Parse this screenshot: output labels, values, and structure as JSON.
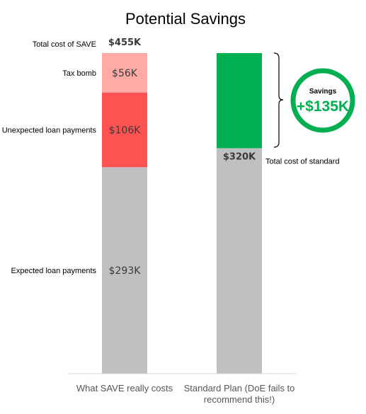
{
  "chart_data": {
    "type": "bar",
    "title": "Potential Savings",
    "ylim": [
      0,
      500
    ],
    "categories": [
      "What SAVE really costs",
      "Standard Plan (DoE fails to recommend this!)"
    ],
    "category_lines": [
      [
        "What SAVE really costs"
      ],
      [
        "Standard Plan (DoE fails to",
        "recommend this!)"
      ]
    ],
    "series": [
      {
        "name": "Expected loan payments",
        "values": [
          293,
          320
        ],
        "color": "#c0c0c0",
        "labels": [
          "$293K",
          ""
        ]
      },
      {
        "name": "Unexpected loan payments",
        "values": [
          106,
          0
        ],
        "color": "#ff5252",
        "labels": [
          "$106K",
          ""
        ]
      },
      {
        "name": "Tax bomb",
        "values": [
          56,
          0
        ],
        "color": "#ffaaa5",
        "labels": [
          "$56K",
          ""
        ]
      },
      {
        "name": "",
        "values": [
          0,
          135
        ],
        "color": "#00b050",
        "labels": [
          "",
          ""
        ]
      }
    ],
    "totals": [
      {
        "value": 455,
        "label": "$455K",
        "caption": "Total cost of SAVE"
      },
      {
        "value": 320,
        "label": "$320K",
        "caption": "Total cost of standard"
      }
    ],
    "savings": {
      "title": "Savings",
      "value": "+$135K",
      "color": "#00b050"
    }
  }
}
